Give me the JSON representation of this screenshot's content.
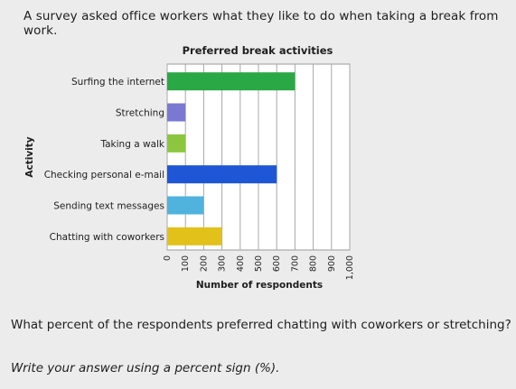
{
  "question": "A survey asked office workers what they like to do when taking a break from work.",
  "followup": "What percent of the respondents preferred chatting with coworkers or stretching?",
  "instruction": "Write your answer using a percent sign (%).",
  "chart_data": {
    "type": "bar",
    "orientation": "horizontal",
    "title": "Preferred break activities",
    "xlabel": "Number of respondents",
    "ylabel": "Activity",
    "xlim": [
      0,
      1000
    ],
    "xticks": [
      "0",
      "100",
      "200",
      "300",
      "400",
      "500",
      "600",
      "700",
      "800",
      "900",
      "1,000"
    ],
    "grid": true,
    "categories": [
      "Surfing the internet",
      "Stretching",
      "Taking a walk",
      "Checking personal e-mail",
      "Sending text messages",
      "Chatting with coworkers"
    ],
    "values": [
      700,
      100,
      100,
      600,
      200,
      300
    ],
    "colors": [
      "#2aa845",
      "#7b78d3",
      "#8cc63f",
      "#1f56d6",
      "#4fb3de",
      "#e3c11b"
    ]
  }
}
